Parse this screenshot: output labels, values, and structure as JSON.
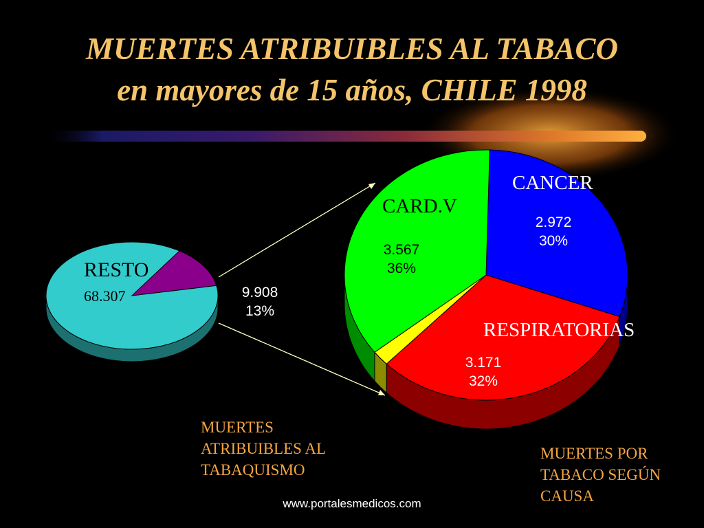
{
  "title_line1": "MUERTES ATRIBUIBLES AL TABACO",
  "title_line2": "en mayores de 15 años, CHILE 1998",
  "colors": {
    "title": "#F5C46A",
    "caption": "#F5A542",
    "resto": "#33CCCC",
    "atribuibles": "#8B008B",
    "card": "#00FF00",
    "cancer": "#0000FF",
    "respiratorias": "#FF0000",
    "otras": "#FFFF00"
  },
  "chart_data": [
    {
      "type": "pie",
      "caption": [
        "MUERTES",
        "ATRIBUIBLES AL",
        "TABAQUISMO"
      ],
      "slices": [
        {
          "label": "RESTO",
          "value": "68.307",
          "numeric": 68307,
          "color": "#33CCCC"
        },
        {
          "label": "",
          "value": "9.908",
          "percent": "13%",
          "numeric": 9908,
          "color": "#8B008B"
        }
      ]
    },
    {
      "type": "pie",
      "caption": [
        "MUERTES POR",
        "TABACO SEGÚN",
        "CAUSA"
      ],
      "slices": [
        {
          "label": "CANCER",
          "value": "2.972",
          "percent": "30%",
          "numeric": 2972,
          "color": "#0000FF"
        },
        {
          "label": "RESPIRATORIAS",
          "value": "3.171",
          "percent": "32%",
          "numeric": 3171,
          "color": "#FF0000"
        },
        {
          "label": "",
          "value": "",
          "percent": "",
          "numeric": 198,
          "color": "#FFFF00"
        },
        {
          "label": "CARD.V",
          "value": "3.567",
          "percent": "36%",
          "numeric": 3567,
          "color": "#00FF00"
        }
      ]
    }
  ],
  "footer": "www.portalesmedicos.com"
}
